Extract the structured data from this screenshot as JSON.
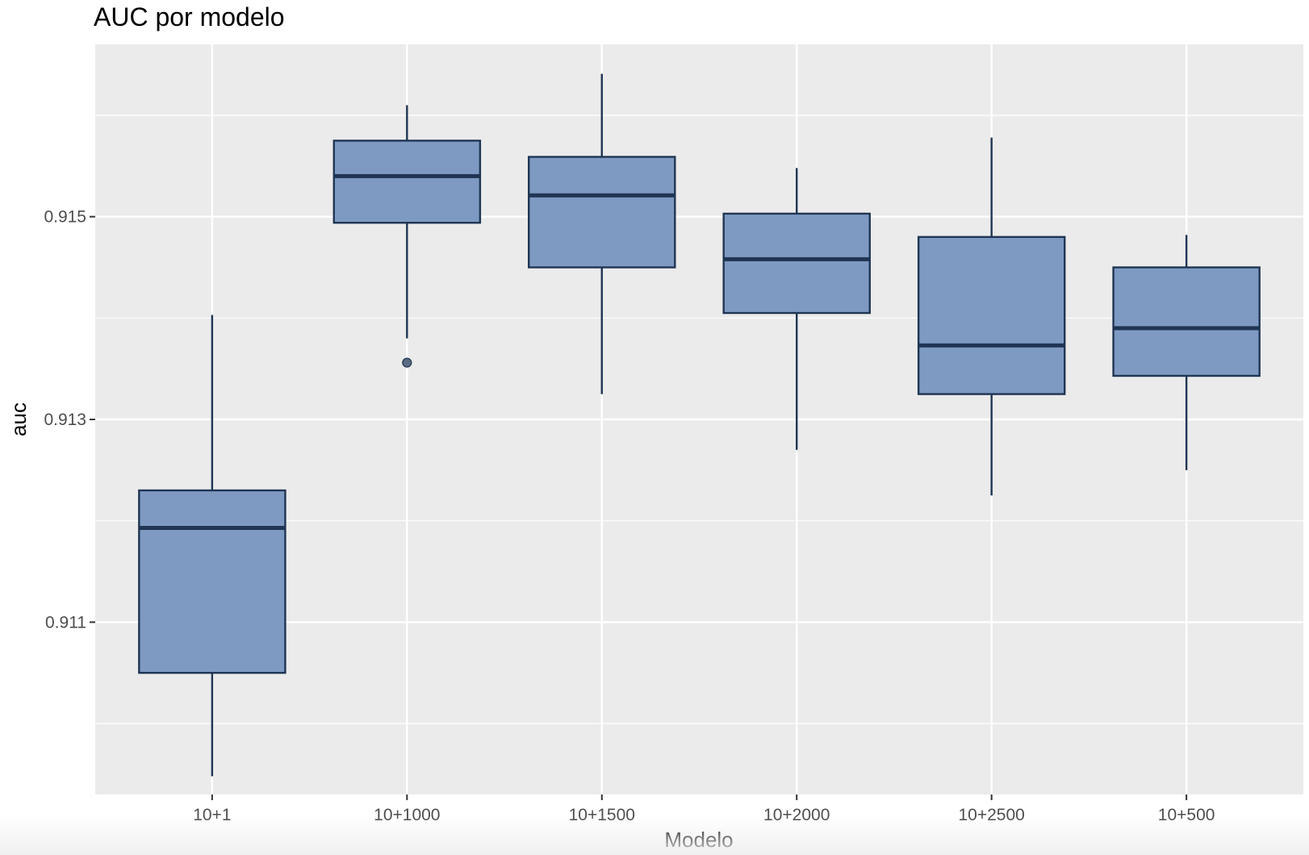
{
  "chart_data": {
    "type": "boxplot",
    "title": "AUC por modelo",
    "xlabel": "Modelo",
    "ylabel": "auc",
    "ylim": [
      0.9093,
      0.9167
    ],
    "y_ticks": [
      0.911,
      0.913,
      0.915
    ],
    "y_tick_labels": [
      "0.911",
      "0.913",
      "0.915"
    ],
    "y_minor_ticks": [
      0.91,
      0.912,
      0.914,
      0.916
    ],
    "grid": true,
    "legend": "none",
    "categories": [
      "10+1",
      "10+1000",
      "10+1500",
      "10+2000",
      "10+2500",
      "10+500"
    ],
    "boxes": [
      {
        "category": "10+1",
        "lower_whisker": 0.90948,
        "q1": 0.9105,
        "median": 0.91193,
        "q3": 0.9123,
        "upper_whisker": 0.91403,
        "outliers": []
      },
      {
        "category": "10+1000",
        "lower_whisker": 0.9138,
        "q1": 0.91494,
        "median": 0.9154,
        "q3": 0.91575,
        "upper_whisker": 0.9161,
        "outliers": [
          0.91356
        ]
      },
      {
        "category": "10+1500",
        "lower_whisker": 0.91325,
        "q1": 0.9145,
        "median": 0.91521,
        "q3": 0.91559,
        "upper_whisker": 0.91641,
        "outliers": []
      },
      {
        "category": "10+2000",
        "lower_whisker": 0.9127,
        "q1": 0.91405,
        "median": 0.91458,
        "q3": 0.91503,
        "upper_whisker": 0.91548,
        "outliers": []
      },
      {
        "category": "10+2500",
        "lower_whisker": 0.91225,
        "q1": 0.91325,
        "median": 0.91373,
        "q3": 0.9148,
        "upper_whisker": 0.91578,
        "outliers": []
      },
      {
        "category": "10+500",
        "lower_whisker": 0.9125,
        "q1": 0.91343,
        "median": 0.9139,
        "q3": 0.9145,
        "upper_whisker": 0.91482,
        "outliers": []
      }
    ],
    "colors": {
      "panel_background": "#ebebeb",
      "grid": "#ffffff",
      "box_fill": "#7f9ac2",
      "box_stroke": "#1f3553",
      "outlier": "#5a6b82"
    }
  }
}
